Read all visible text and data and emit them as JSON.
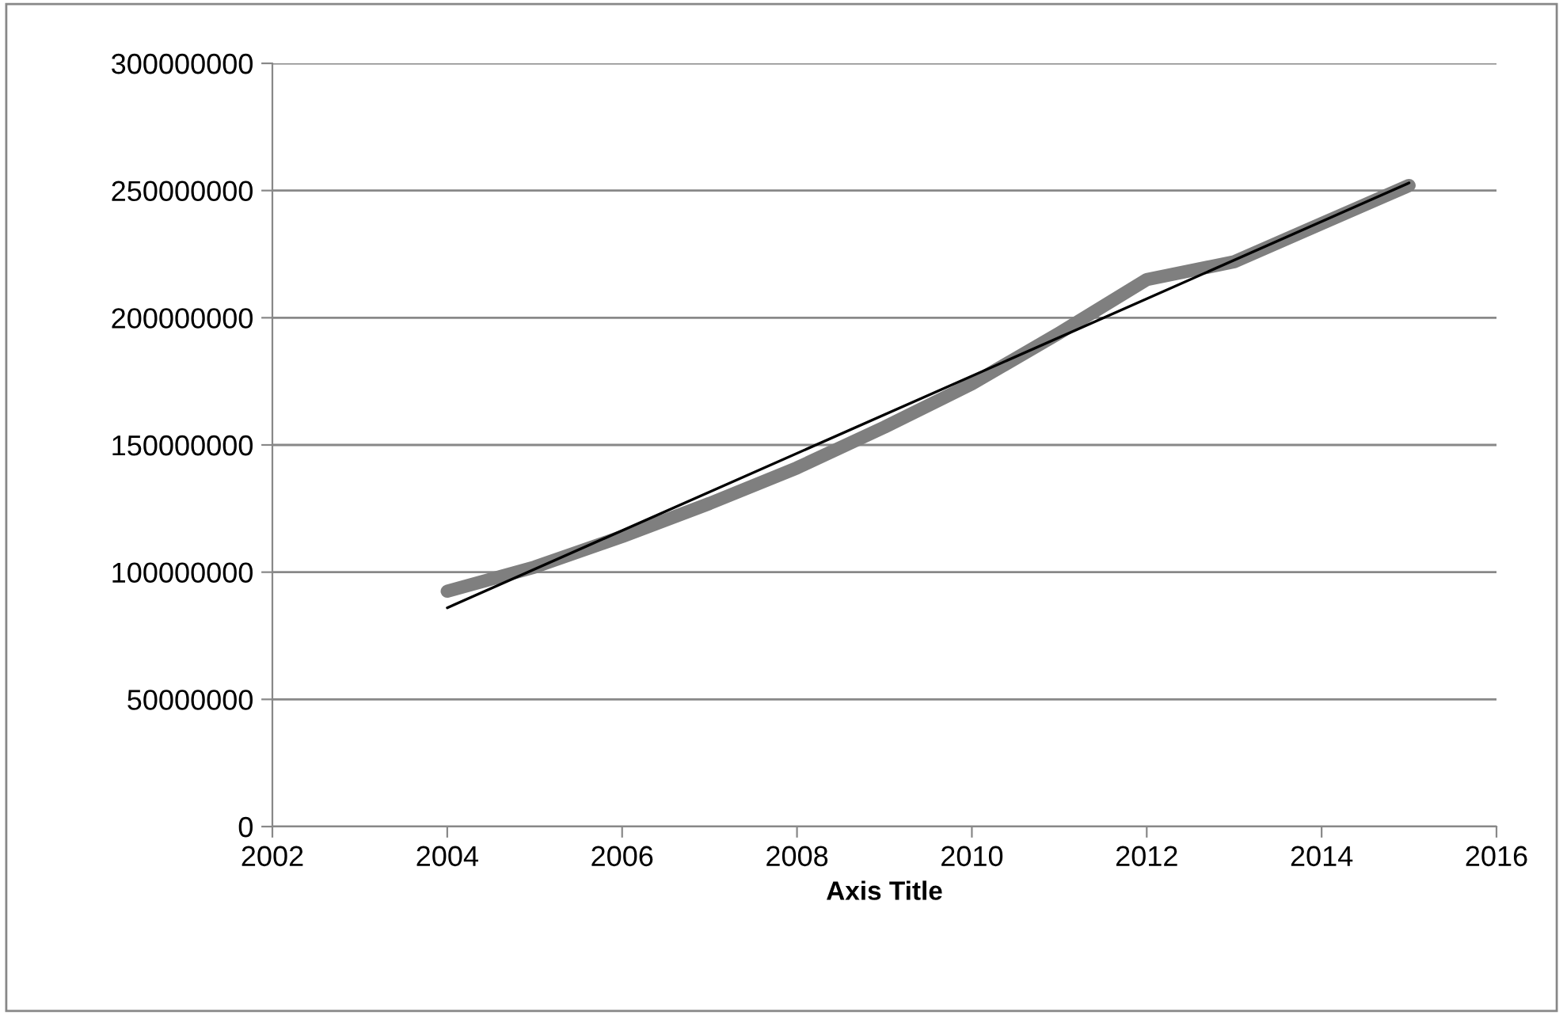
{
  "chart_data": {
    "type": "line",
    "xlabel": "Axis Title",
    "xlim": [
      2002,
      2016
    ],
    "xticks": [
      2002,
      2004,
      2006,
      2008,
      2010,
      2012,
      2014,
      2016
    ],
    "ylim": [
      0,
      300000000
    ],
    "yticks": [
      0,
      50000000,
      100000000,
      150000000,
      200000000,
      250000000,
      300000000
    ],
    "grid": "y",
    "legend": false,
    "marker": "none",
    "line_style": "solid",
    "series": [
      {
        "color": "#7f7f7f",
        "x": [
          2004,
          2005,
          2006,
          2007,
          2008,
          2009,
          2010,
          2011,
          2012,
          2013,
          2014,
          2015
        ],
        "values": [
          92500000,
          102000000,
          114000000,
          127000000,
          141000000,
          157000000,
          174000000,
          194000000,
          215000000,
          222000000,
          237000000,
          252000000
        ]
      },
      {
        "color": "#000000",
        "x": [
          2004,
          2015
        ],
        "values": [
          86000000,
          253000000
        ]
      }
    ]
  }
}
